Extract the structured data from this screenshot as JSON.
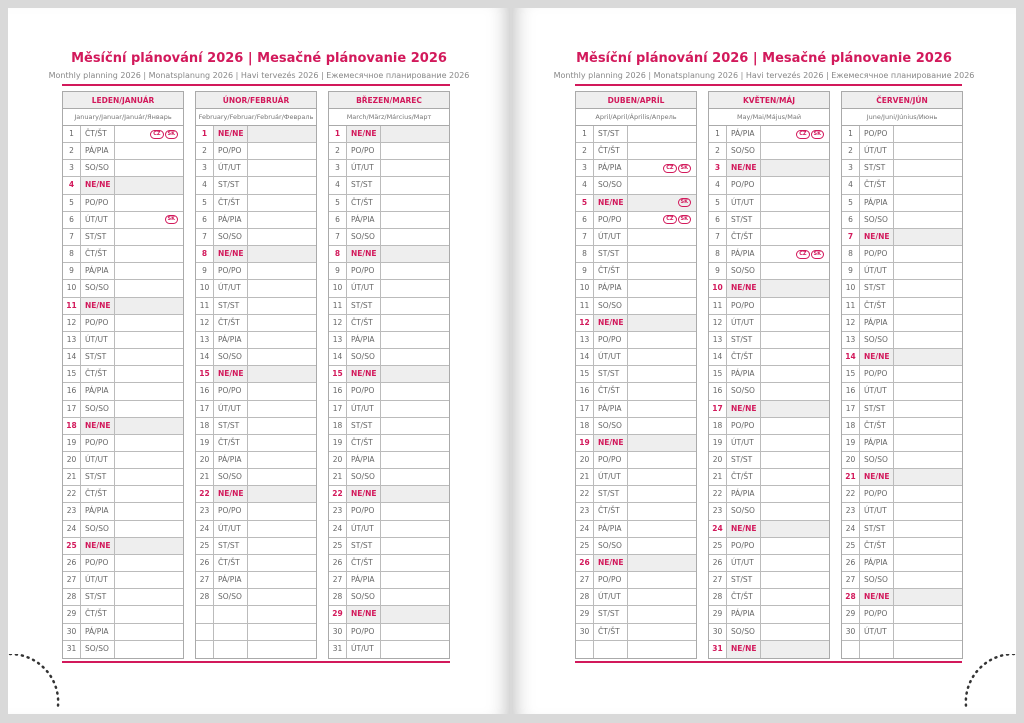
{
  "pages": [
    {
      "title": "Měsíční plánování 2026 | Mesačné plánovanie 2026",
      "subtitle": "Monthly planning 2026 | Monatsplanung 2026 | Havi tervezés 2026 | Ежемесячное планирование 2026",
      "months": [
        {
          "name": "LEDEN/JANUÁR",
          "sub": "January/Januar/Január/Январь",
          "first": 3,
          "count": 31,
          "tags": {
            "1": [
              "CZ",
              "SK"
            ],
            "6": [
              "SK"
            ]
          }
        },
        {
          "name": "ÚNOR/FEBRUÁR",
          "sub": "February/Februar/Február/Февраль",
          "first": 6,
          "count": 28,
          "tags": {}
        },
        {
          "name": "BŘEZEN/MAREC",
          "sub": "March/März/Március/Март",
          "first": 6,
          "count": 31,
          "tags": {}
        }
      ]
    },
    {
      "title": "Měsíční plánování 2026 | Mesačné plánovanie 2026",
      "subtitle": "Monthly planning 2026 | Monatsplanung 2026 | Havi tervezés 2026 | Ежемесячное планирование 2026",
      "months": [
        {
          "name": "DUBEN/APRÍL",
          "sub": "April/April/Április/Апрель",
          "first": 2,
          "count": 30,
          "tags": {
            "3": [
              "CZ",
              "SK"
            ],
            "5": [
              "SK"
            ],
            "6": [
              "CZ",
              "SK"
            ]
          }
        },
        {
          "name": "KVĚTEN/MÁJ",
          "sub": "May/Mai/Május/Май",
          "first": 4,
          "count": 31,
          "tags": {
            "1": [
              "CZ",
              "SK"
            ],
            "8": [
              "CZ",
              "SK"
            ]
          }
        },
        {
          "name": "ČERVEN/JÚN",
          "sub": "June/Juni/Június/Июнь",
          "first": 0,
          "count": 30,
          "tags": {}
        }
      ]
    }
  ],
  "weekdays": [
    "PO/PO",
    "ÚT/UT",
    "ST/ST",
    "ČT/ŠT",
    "PÁ/PIA",
    "SO/SO",
    "NE/NE"
  ],
  "accent": "#d2195b"
}
